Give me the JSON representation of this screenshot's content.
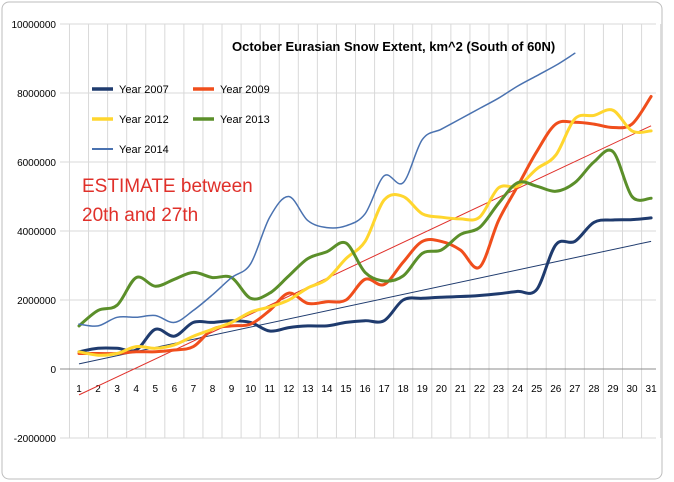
{
  "chart_data": {
    "type": "line",
    "title": "October Eurasian Snow Extent, km^2 (South of 60N)",
    "annotation": [
      "ESTIMATE between",
      "20th and 27th"
    ],
    "annotation_color": "#e0302a",
    "x": [
      1,
      2,
      3,
      4,
      5,
      6,
      7,
      8,
      9,
      10,
      11,
      12,
      13,
      14,
      15,
      16,
      17,
      18,
      19,
      20,
      21,
      22,
      23,
      24,
      25,
      26,
      27,
      28,
      29,
      30,
      31
    ],
    "ylim": [
      -2000000,
      10000000
    ],
    "yticks": [
      -2000000,
      0,
      2000000,
      4000000,
      6000000,
      8000000,
      10000000
    ],
    "ytick_labels": [
      "-2000000",
      "0",
      "2000000",
      "4000000",
      "6000000",
      "8000000",
      "10000000"
    ],
    "grid": true,
    "legend_position": "top-left",
    "series": [
      {
        "name": "Year 2007",
        "color": "#1f3b6e",
        "width": 3,
        "values": [
          500000,
          600000,
          600000,
          550000,
          1150000,
          950000,
          1350000,
          1350000,
          1400000,
          1350000,
          1100000,
          1200000,
          1250000,
          1250000,
          1350000,
          1400000,
          1400000,
          2000000,
          2050000,
          2080000,
          2100000,
          2130000,
          2180000,
          2250000,
          2300000,
          3600000,
          3700000,
          4250000,
          4320000,
          4330000,
          4380000
        ]
      },
      {
        "name": "Year 2009",
        "color": "#f04e1c",
        "width": 3,
        "values": [
          450000,
          450000,
          450000,
          500000,
          500000,
          550000,
          650000,
          1150000,
          1250000,
          1300000,
          1700000,
          2200000,
          1900000,
          1950000,
          2000000,
          2600000,
          2450000,
          3100000,
          3700000,
          3700000,
          3450000,
          2950000,
          4300000,
          5300000,
          6300000,
          7100000,
          7150000,
          7100000,
          7000000,
          7100000,
          7900000
        ]
      },
      {
        "name": "Year 2012",
        "color": "#ffd62e",
        "width": 3,
        "values": [
          500000,
          400000,
          450000,
          650000,
          600000,
          700000,
          950000,
          1150000,
          1350000,
          1650000,
          1800000,
          2000000,
          2350000,
          2600000,
          3200000,
          3700000,
          4900000,
          5000000,
          4500000,
          4400000,
          4350000,
          4400000,
          5250000,
          5300000,
          5800000,
          6200000,
          7250000,
          7350000,
          7500000,
          6900000,
          6900000
        ]
      },
      {
        "name": "Year 2013",
        "color": "#5b8f2a",
        "width": 3,
        "values": [
          1250000,
          1700000,
          1850000,
          2650000,
          2400000,
          2600000,
          2800000,
          2650000,
          2650000,
          2050000,
          2200000,
          2700000,
          3200000,
          3400000,
          3650000,
          2800000,
          2550000,
          2700000,
          3350000,
          3450000,
          3900000,
          4100000,
          4800000,
          5400000,
          5300000,
          5150000,
          5400000,
          6000000,
          6300000,
          5000000,
          4950000
        ]
      },
      {
        "name": "Year 2014",
        "color": "#4a72b0",
        "width": 1.5,
        "values": [
          1300000,
          1250000,
          1500000,
          1500000,
          1550000,
          1350000,
          1700000,
          2150000,
          2650000,
          3050000,
          4400000,
          5000000,
          4300000,
          4100000,
          4150000,
          4500000,
          5600000,
          5400000,
          6650000,
          6950000,
          7250000,
          7550000,
          7850000,
          8200000,
          8500000,
          8800000,
          9150000,
          null,
          null,
          null,
          null
        ]
      }
    ],
    "trendlines": [
      {
        "color": "#e0302a",
        "width": 1,
        "x": [
          1,
          31
        ],
        "y": [
          -750000,
          7050000
        ]
      },
      {
        "color": "#1f3b6e",
        "width": 1,
        "x": [
          1,
          31
        ],
        "y": [
          150000,
          3700000
        ]
      }
    ]
  }
}
